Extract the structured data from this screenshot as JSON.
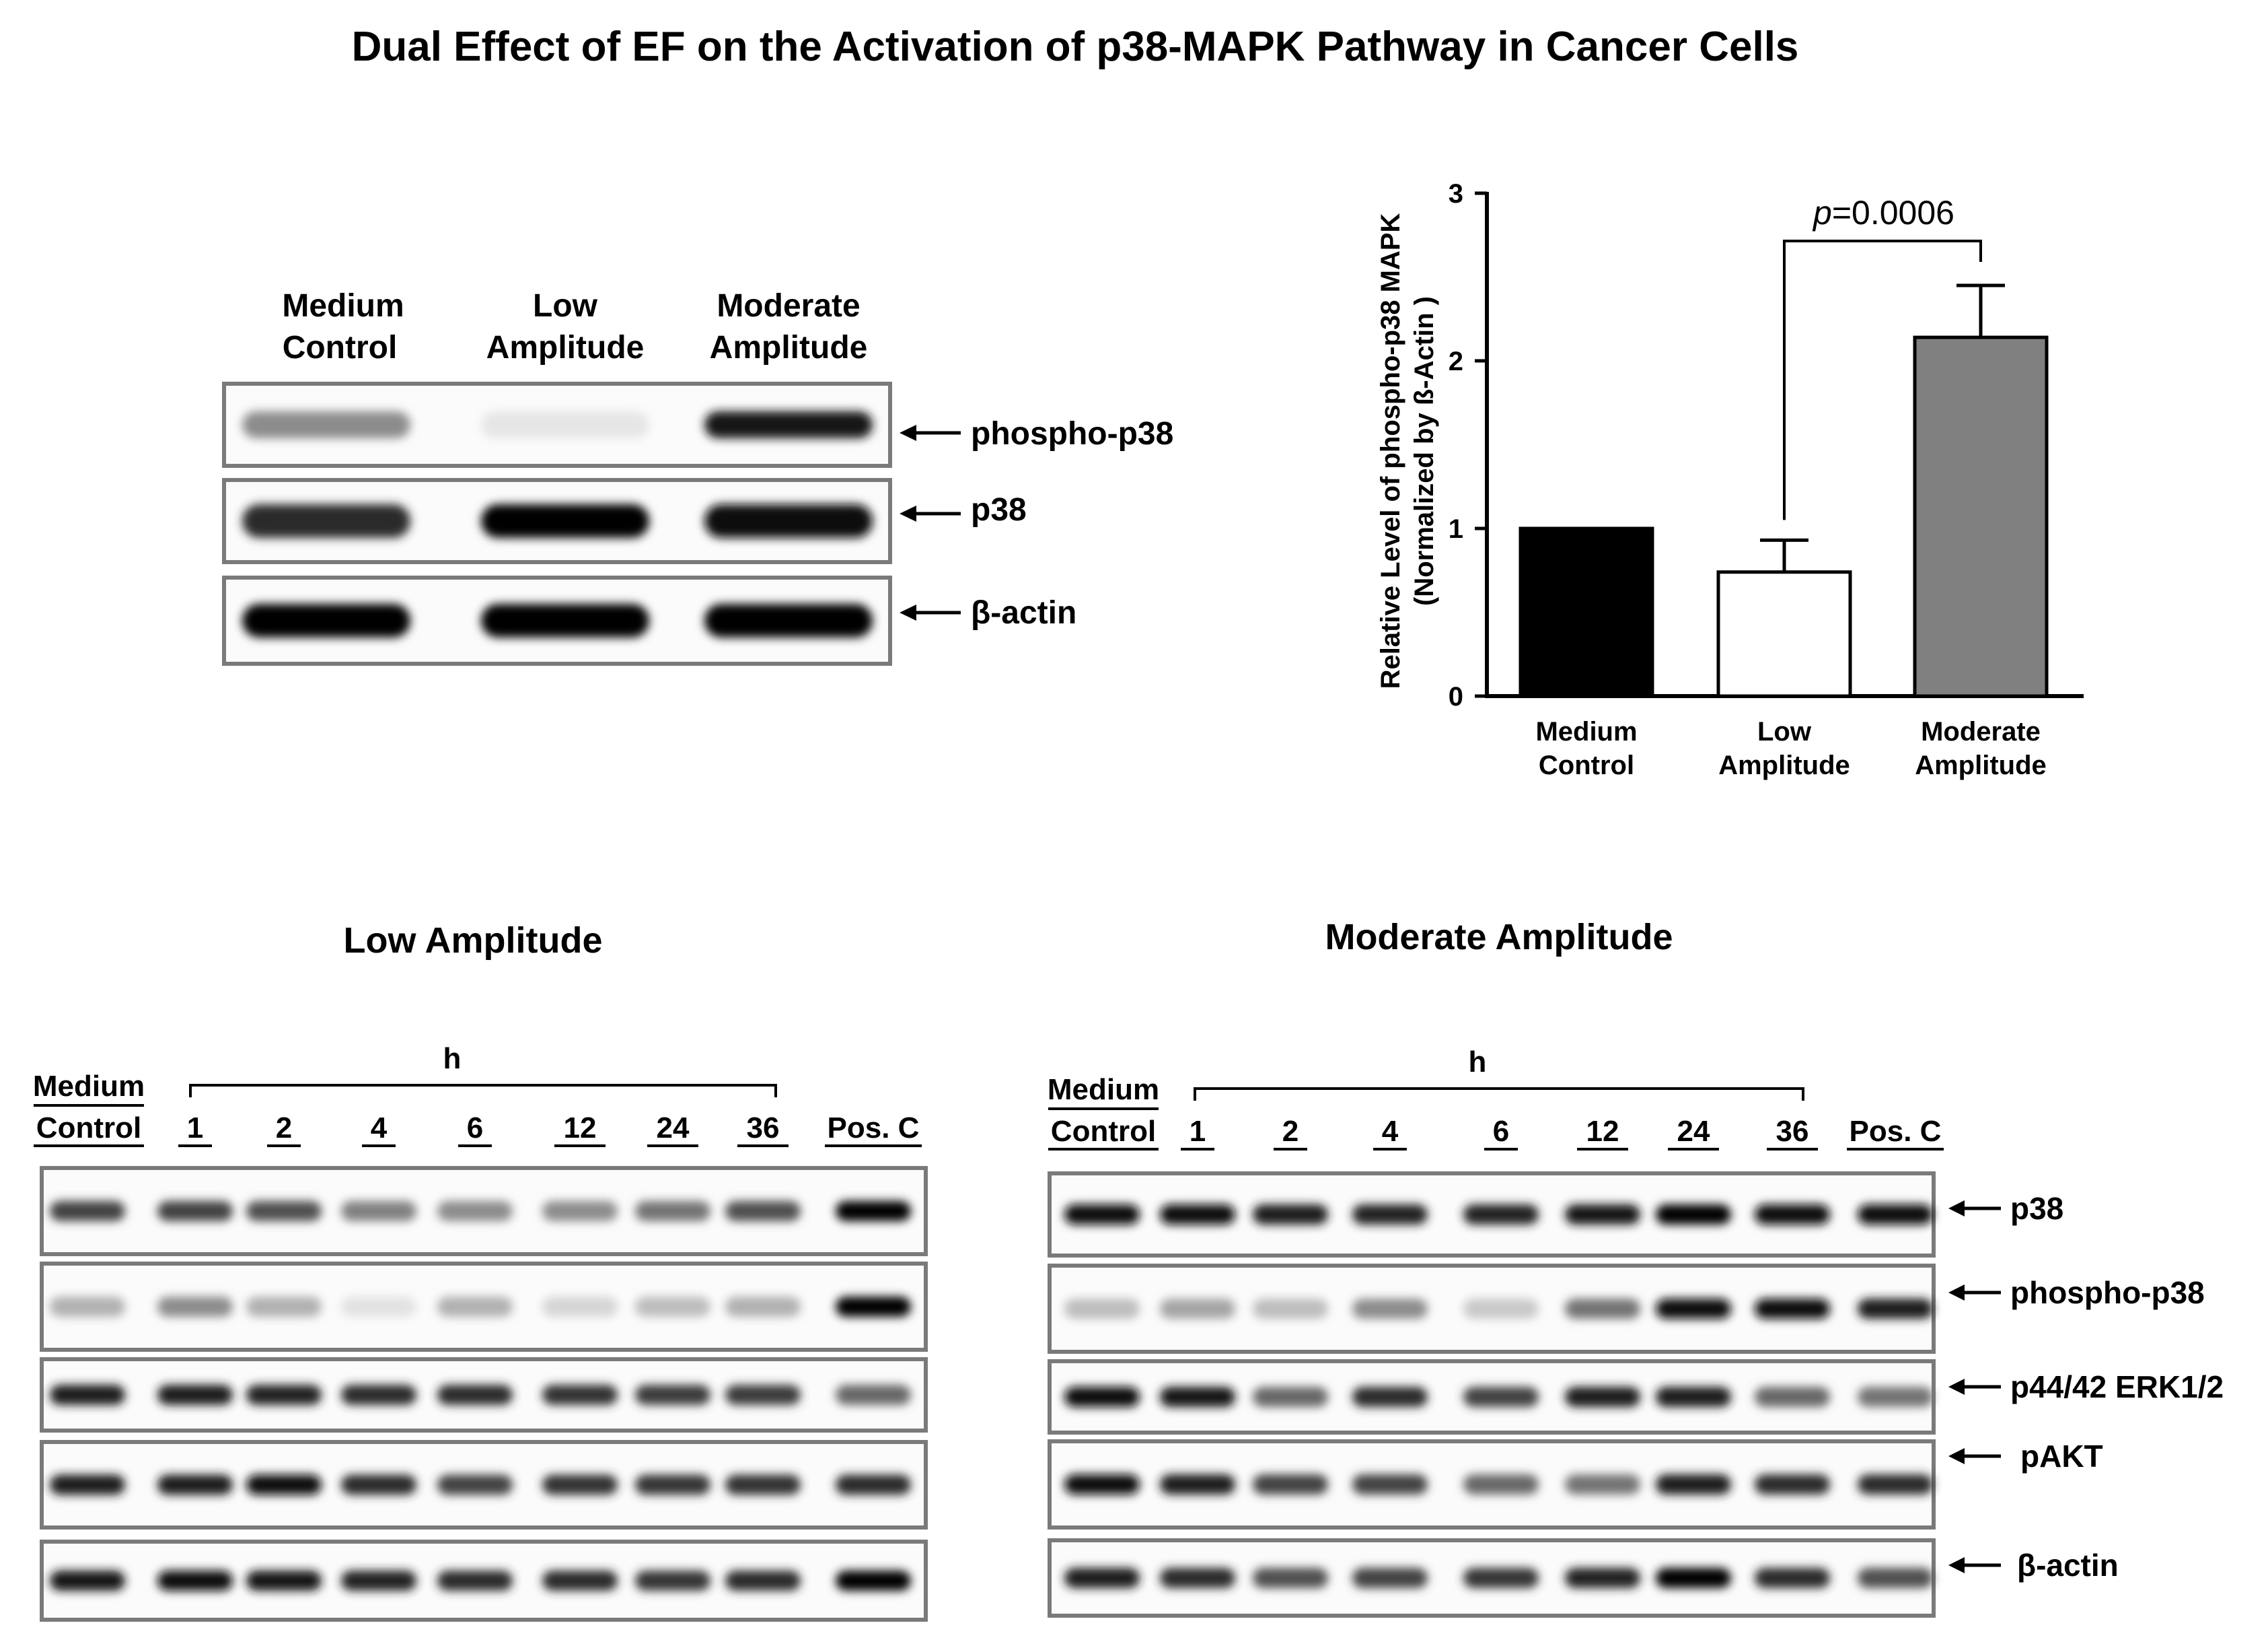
{
  "figure_title": "Dual Effect of EF on the Activation of p38-MAPK Pathway in Cancer Cells",
  "panel_a": {
    "lane_labels": [
      {
        "line1": "Medium",
        "line2": "Control"
      },
      {
        "line1": "Low",
        "line2": "Amplitude"
      },
      {
        "line1": "Moderate",
        "line2": "Amplitude"
      }
    ],
    "blots": [
      {
        "label": "phospho-p38",
        "intensities": [
          0.45,
          0.08,
          0.92
        ]
      },
      {
        "label": "p38",
        "intensities": [
          0.85,
          1.0,
          0.97
        ]
      },
      {
        "label": "β-actin",
        "intensities": [
          1.0,
          1.0,
          1.0
        ]
      }
    ]
  },
  "chart_data": {
    "type": "bar",
    "categories": [
      [
        "Medium",
        "Control"
      ],
      [
        "Low",
        "Amplitude"
      ],
      [
        "Moderate",
        "Amplitude"
      ]
    ],
    "values": [
      1.0,
      0.74,
      2.14
    ],
    "errors": [
      0,
      0.19,
      0.31
    ],
    "bar_colors": [
      "#000000",
      "#ffffff",
      "#808080"
    ],
    "ylabel_line1": "Relative Level of phospho-p38 MAPK",
    "ylabel_line2": "(Normalized by ß-Actin )",
    "ylim": [
      0,
      3
    ],
    "yticks": [
      "0",
      "1",
      "2",
      "3"
    ],
    "significance": {
      "between": [
        1,
        2
      ],
      "p_symbol": "p",
      "p_value": "=0.0006"
    }
  },
  "panel_low": {
    "title": "Low Amplitude",
    "time_unit": "h",
    "control_label": {
      "line1": "Medium",
      "line2": "Control"
    },
    "time_points": [
      "1",
      "2",
      "4",
      "6",
      "12",
      "24",
      "36"
    ],
    "positive_control": "Pos. C",
    "blots": [
      {
        "intensities": [
          0.75,
          0.75,
          0.7,
          0.5,
          0.45,
          0.45,
          0.55,
          0.7,
          1.0
        ]
      },
      {
        "intensities": [
          0.3,
          0.45,
          0.3,
          0.1,
          0.3,
          0.15,
          0.25,
          0.3,
          1.0
        ]
      },
      {
        "intensities": [
          0.9,
          0.9,
          0.88,
          0.85,
          0.85,
          0.82,
          0.78,
          0.78,
          0.6
        ]
      },
      {
        "intensities": [
          0.9,
          0.9,
          0.95,
          0.85,
          0.75,
          0.82,
          0.8,
          0.82,
          0.85
        ]
      },
      {
        "intensities": [
          0.92,
          0.95,
          0.92,
          0.88,
          0.85,
          0.85,
          0.8,
          0.85,
          1.0
        ]
      }
    ]
  },
  "panel_moderate": {
    "title": "Moderate Amplitude",
    "time_unit": "h",
    "control_label": {
      "line1": "Medium",
      "line2": "Control"
    },
    "time_points": [
      "1",
      "2",
      "4",
      "6",
      "12",
      "24",
      "36"
    ],
    "positive_control": "Pos. C",
    "blots": [
      {
        "label": "p38",
        "intensities": [
          0.95,
          0.95,
          0.9,
          0.88,
          0.88,
          0.92,
          1.0,
          0.95,
          0.95
        ]
      },
      {
        "label": "phospho-p38",
        "intensities": [
          0.25,
          0.35,
          0.25,
          0.45,
          0.2,
          0.55,
          0.95,
          0.98,
          0.9
        ]
      },
      {
        "label": "p44/42 ERK1/2",
        "intensities": [
          0.95,
          0.92,
          0.6,
          0.85,
          0.75,
          0.9,
          0.9,
          0.6,
          0.55
        ]
      },
      {
        "label": "pAKT",
        "intensities": [
          0.95,
          0.9,
          0.75,
          0.75,
          0.6,
          0.55,
          0.9,
          0.85,
          0.85
        ]
      },
      {
        "label": "β-actin",
        "intensities": [
          0.9,
          0.85,
          0.7,
          0.75,
          0.8,
          0.88,
          1.0,
          0.85,
          0.7
        ]
      }
    ]
  }
}
